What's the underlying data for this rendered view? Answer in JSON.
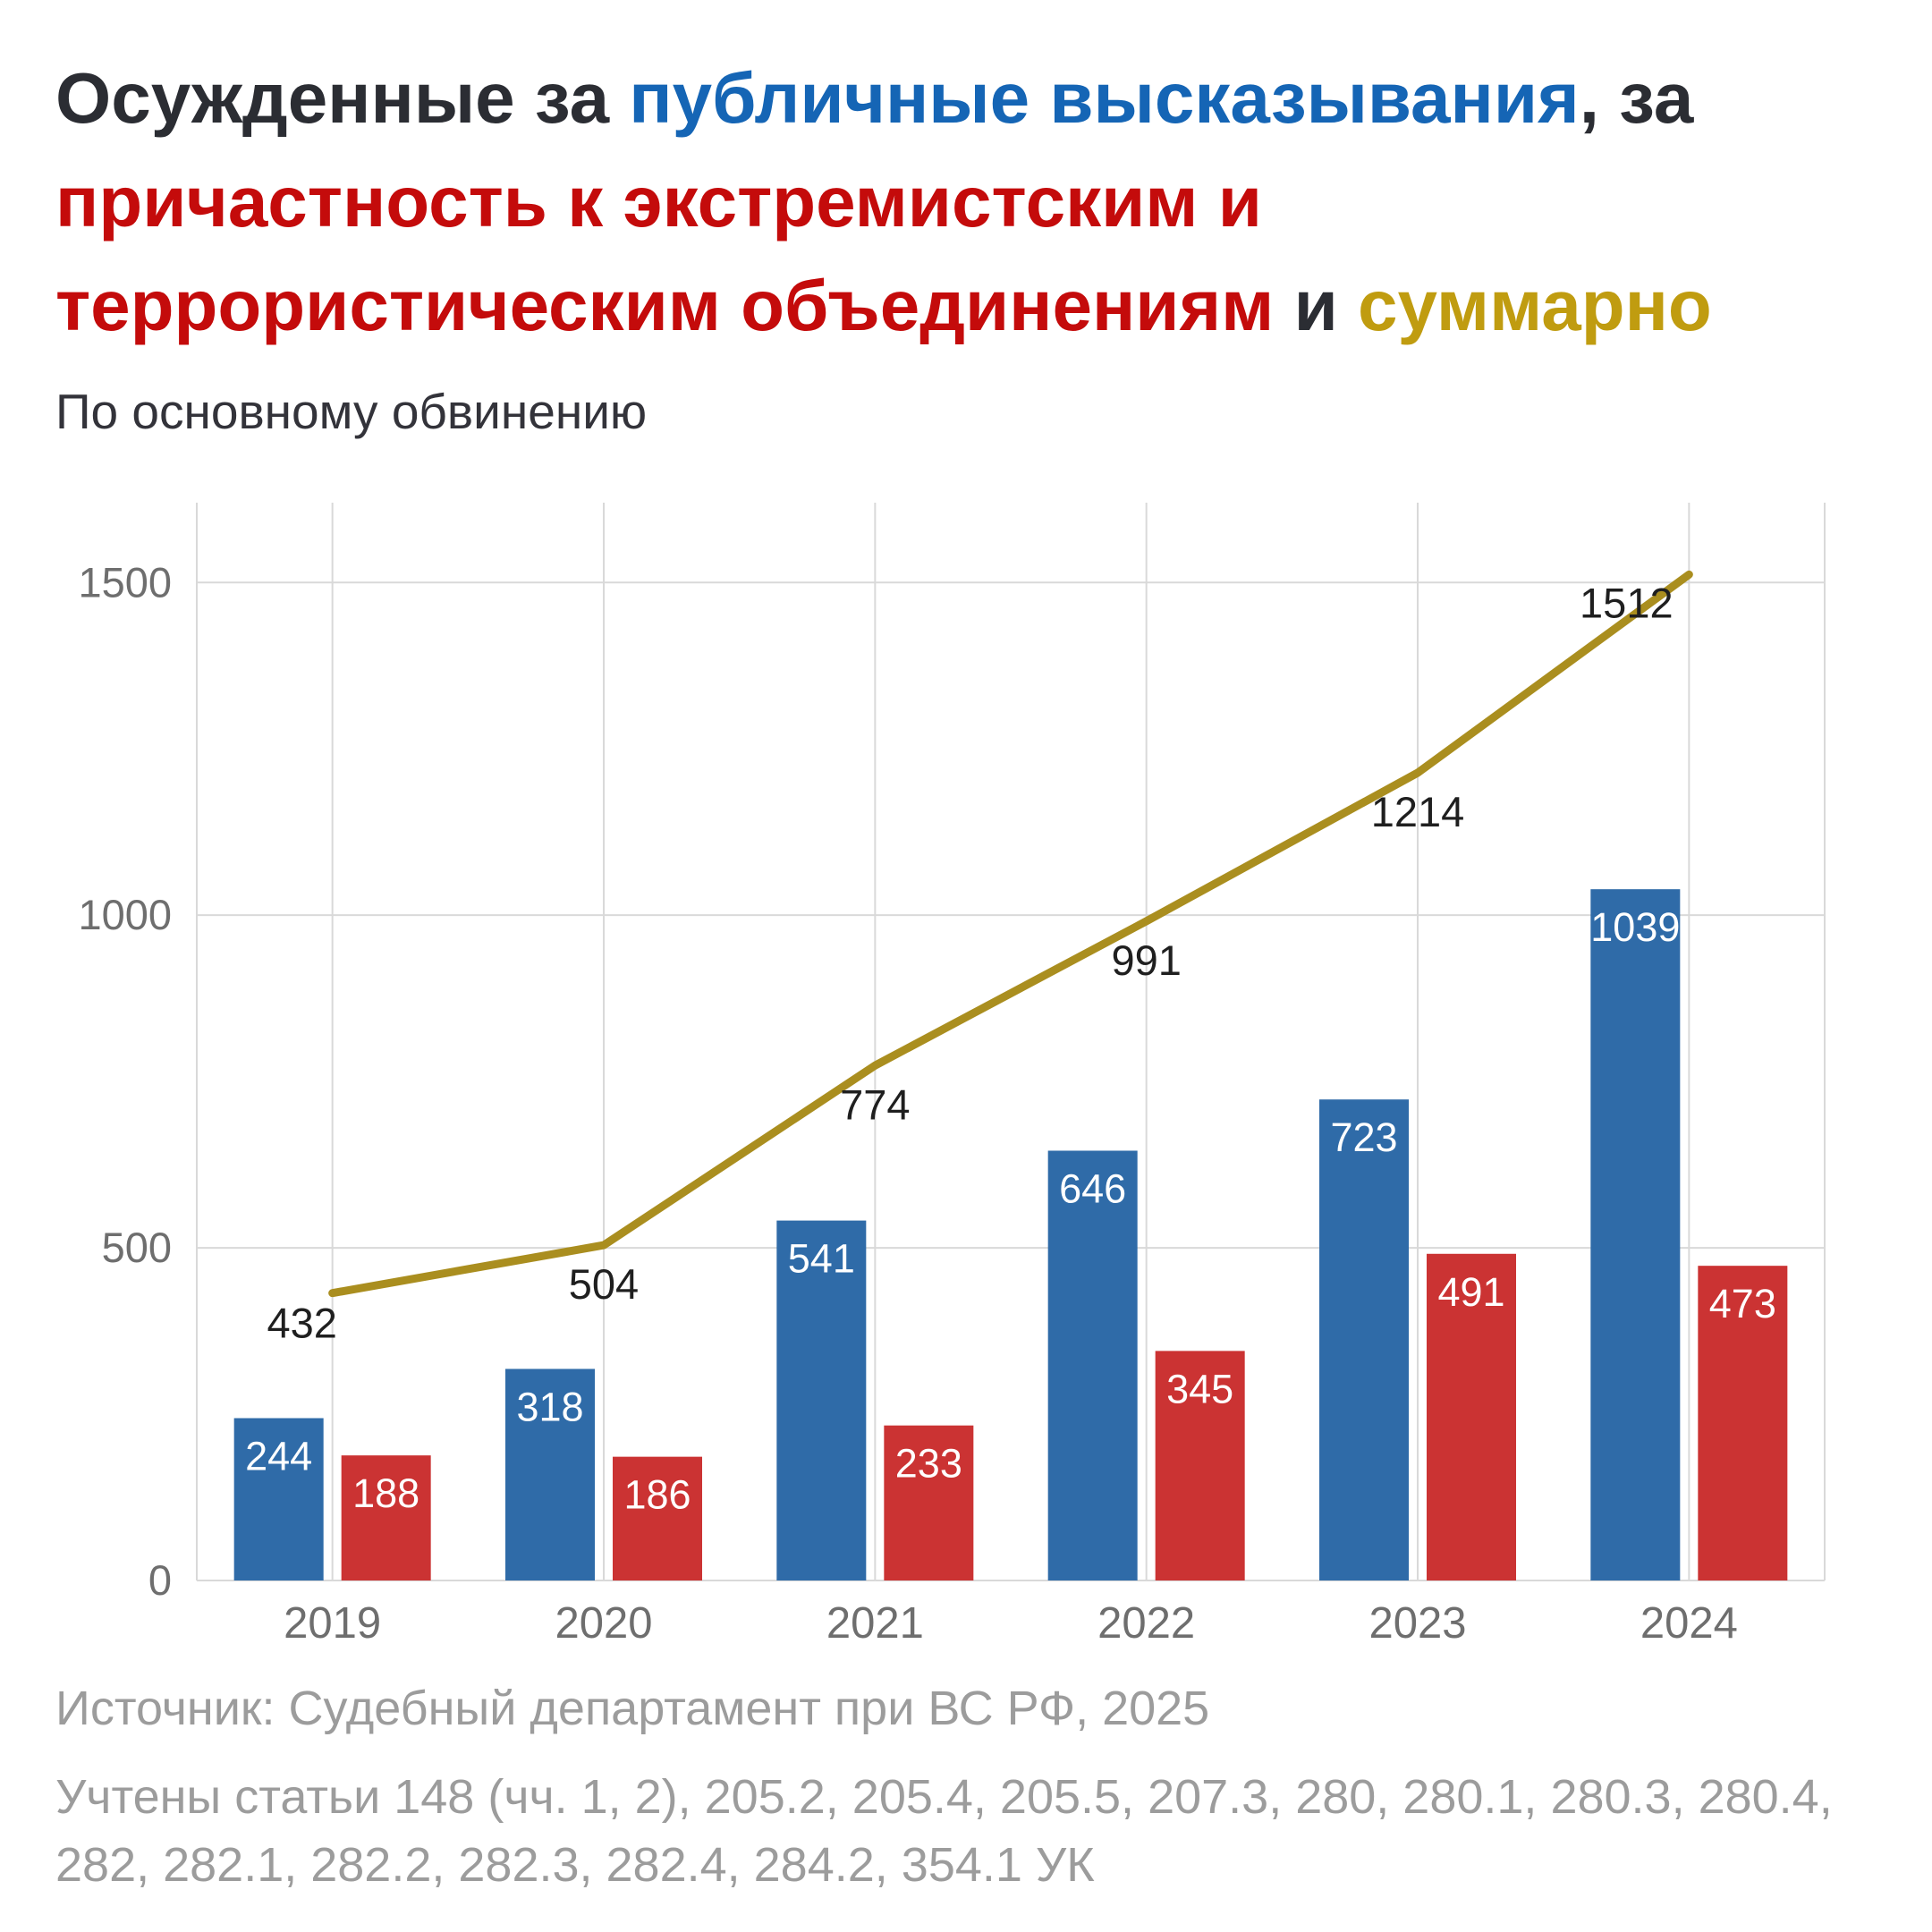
{
  "title": {
    "segments": [
      {
        "text": "Осужденные за ",
        "color": "#2b2d33"
      },
      {
        "text": "публичные высказывания",
        "color": "#1565b5"
      },
      {
        "text": ", за ",
        "color": "#2b2d33"
      },
      {
        "text": "причастность к экстремистским и террористическим объединениям",
        "color": "#c40b0b"
      },
      {
        "text": " и ",
        "color": "#2b2d33"
      },
      {
        "text": "суммарно",
        "color": "#c09c10"
      }
    ]
  },
  "subtitle": "По основному обвинению",
  "chart_data": {
    "type": "bar",
    "title": "Осужденные за публичные высказывания, за причастность к экстремистским и террористическим объединениям и суммарно",
    "subtitle": "По основному обвинению",
    "categories": [
      "2019",
      "2020",
      "2021",
      "2022",
      "2023",
      "2024"
    ],
    "series": [
      {
        "name": "Публичные высказывания",
        "type": "bar",
        "color": "#2f6ba8",
        "label_color": "#ffffff",
        "values": [
          244,
          318,
          541,
          646,
          723,
          1039
        ]
      },
      {
        "name": "Причастность к экстремистским и террористическим объединениям",
        "type": "bar",
        "color": "#cb3333",
        "label_color": "#ffffff",
        "values": [
          188,
          186,
          233,
          345,
          491,
          473
        ]
      },
      {
        "name": "Суммарно",
        "type": "line",
        "color": "#aa8e1f",
        "label_color": "#1f1f1f",
        "values": [
          432,
          504,
          774,
          991,
          1214,
          1512
        ]
      }
    ],
    "xlabel": "",
    "ylabel": "",
    "yticks": [
      0,
      500,
      1000,
      1500
    ],
    "ylim": [
      0,
      1620
    ],
    "grid": true,
    "grid_color": "#d9d9d9",
    "axis_text_color": "#6e6e6e",
    "legend": "none (series encoded by title colors)"
  },
  "footer": {
    "source": "Источник: Судебный департамент при ВС РФ, 2025",
    "note": "Учтены статьи 148 (чч. 1, 2), 205.2, 205.4, 205.5, 207.3, 280, 280.1, 280.3, 280.4, 282, 282.1, 282.2, 282.3, 282.4, 284.2, 354.1 УК"
  }
}
